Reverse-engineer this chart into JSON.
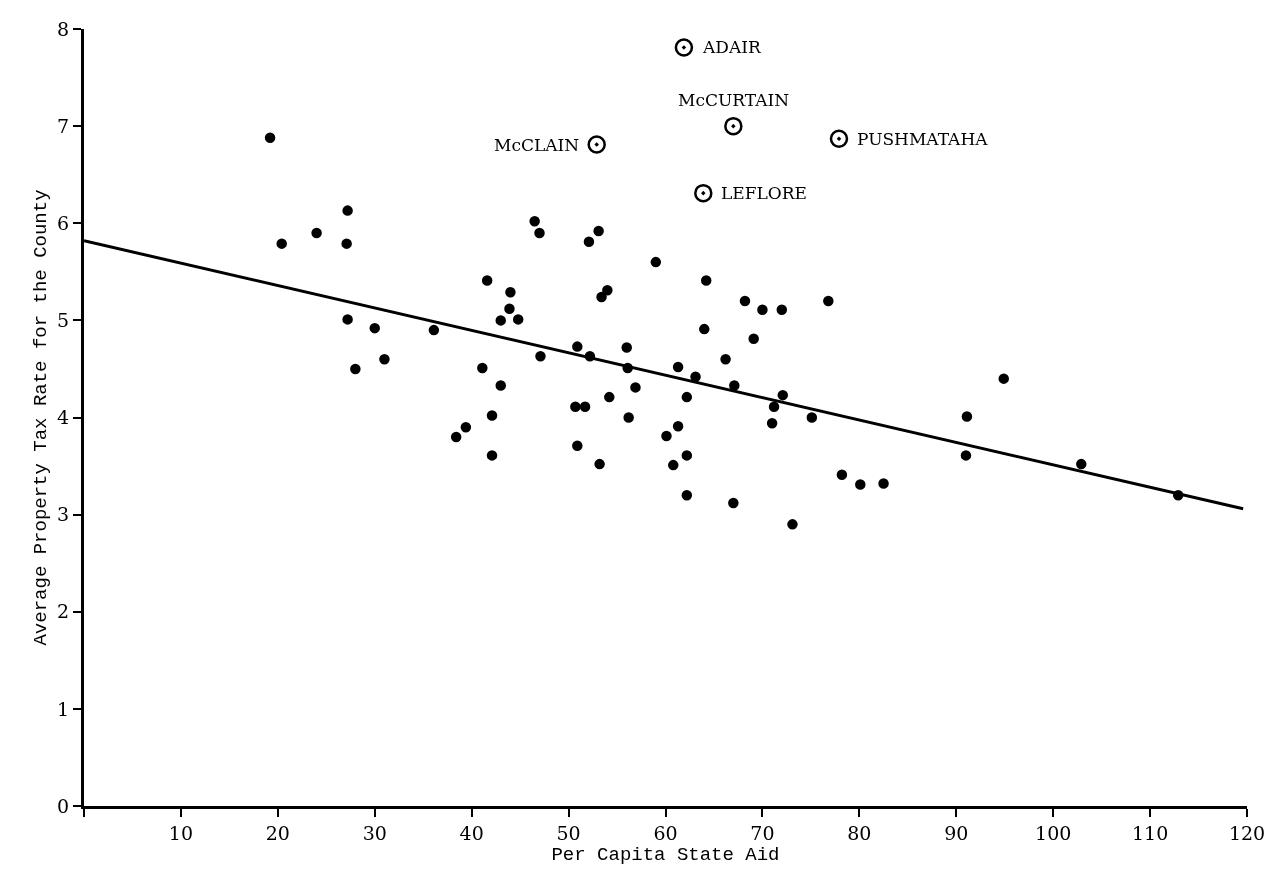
{
  "chart_data": {
    "type": "scatter",
    "xlabel": "Per Capita State Aid",
    "ylabel": "Average Property Tax Rate for the County",
    "xlim": [
      0,
      120
    ],
    "xticks": [
      {
        "value": 0,
        "label": null
      },
      10,
      20,
      30,
      40,
      50,
      60,
      70,
      80,
      90,
      100,
      110,
      120
    ],
    "ylim": [
      0,
      8
    ],
    "yticks": [
      0,
      1,
      2,
      3,
      4,
      5,
      6,
      7,
      8
    ],
    "series": [
      {
        "marker": "circle",
        "color": "#000000",
        "x": [
          19.2,
          20.4,
          24.0,
          27.2,
          27.1,
          27.2,
          30.0,
          28.0,
          31.0,
          36.1,
          38.4,
          39.4,
          41.1,
          43.0,
          41.6,
          44.0,
          43.9,
          43.0,
          44.8,
          42.1,
          42.1,
          46.5,
          47.0,
          53.1,
          52.1,
          59.0,
          54.0,
          53.4,
          64.2,
          68.2,
          70.0,
          72.0,
          76.8,
          64.0,
          69.1,
          50.9,
          52.2,
          47.1,
          56.0,
          56.1,
          61.3,
          63.1,
          66.2,
          67.1,
          72.1,
          71.2,
          71.0,
          75.1,
          56.9,
          54.2,
          62.2,
          50.7,
          51.7,
          56.2,
          61.3,
          60.1,
          50.9,
          62.2,
          53.2,
          60.8,
          62.2,
          67.0,
          73.1,
          78.2,
          80.1,
          82.5,
          94.9,
          91.1,
          91.0,
          102.9,
          112.9
        ],
        "values": [
          6.88,
          5.79,
          5.9,
          6.13,
          5.79,
          5.01,
          4.92,
          4.5,
          4.6,
          4.9,
          3.8,
          3.9,
          4.51,
          4.33,
          5.41,
          5.29,
          5.12,
          5.0,
          5.01,
          4.02,
          3.61,
          6.02,
          5.9,
          5.92,
          5.81,
          5.6,
          5.31,
          5.24,
          5.41,
          5.2,
          5.11,
          5.11,
          5.2,
          4.91,
          4.81,
          4.73,
          4.63,
          4.63,
          4.72,
          4.51,
          4.52,
          4.42,
          4.6,
          4.33,
          4.23,
          4.11,
          3.94,
          4.0,
          4.31,
          4.21,
          4.21,
          4.11,
          4.11,
          4.0,
          3.91,
          3.81,
          3.71,
          3.61,
          3.52,
          3.51,
          3.2,
          3.12,
          2.9,
          3.41,
          3.31,
          3.32,
          4.4,
          4.01,
          3.61,
          3.52,
          3.2
        ]
      },
      {
        "marker": "circle",
        "color": "#000000",
        "x": [
          61.9,
          67.0,
          52.9,
          77.9,
          63.9
        ],
        "values": [
          7.81,
          7.0,
          6.81,
          6.87,
          6.31
        ]
      },
      {
        "type": "line",
        "color": "#000000",
        "line_style": "solid",
        "x": [
          0,
          119.6
        ],
        "values": [
          5.82,
          3.06
        ]
      }
    ],
    "annotations": [
      {
        "text": "ADAIR",
        "x": 61.9,
        "y": 7.81
      },
      {
        "text": "McCURTAIN",
        "x": 67.0,
        "y": 7.0
      },
      {
        "text": "McCLAIN",
        "x": 52.9,
        "y": 6.81
      },
      {
        "text": "PUSHMATAHA",
        "x": 77.9,
        "y": 6.87
      },
      {
        "text": "LEFLORE",
        "x": 63.9,
        "y": 6.31
      }
    ]
  }
}
